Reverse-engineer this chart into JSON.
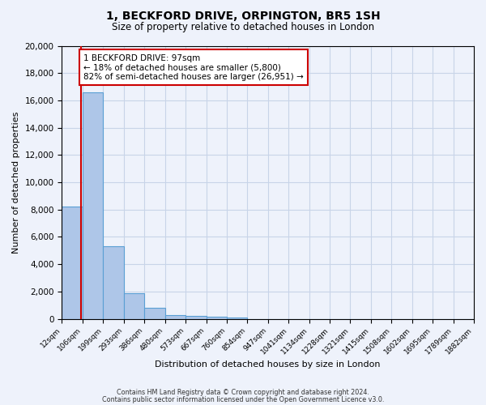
{
  "title_line1": "1, BECKFORD DRIVE, ORPINGTON, BR5 1SH",
  "title_line2": "Size of property relative to detached houses in London",
  "xlabel": "Distribution of detached houses by size in London",
  "ylabel": "Number of detached properties",
  "bar_values": [
    8200,
    16600,
    5300,
    1850,
    800,
    300,
    200,
    150,
    100,
    0,
    0,
    0,
    0,
    0,
    0,
    0,
    0,
    0,
    0,
    0
  ],
  "bin_labels": [
    "12sqm",
    "106sqm",
    "199sqm",
    "293sqm",
    "386sqm",
    "480sqm",
    "573sqm",
    "667sqm",
    "760sqm",
    "854sqm",
    "947sqm",
    "1041sqm",
    "1134sqm",
    "1228sqm",
    "1321sqm",
    "1415sqm",
    "1508sqm",
    "1602sqm",
    "1695sqm",
    "1789sqm",
    "1882sqm"
  ],
  "bin_edges": [
    12,
    106,
    199,
    293,
    386,
    480,
    573,
    667,
    760,
    854,
    947,
    1041,
    1134,
    1228,
    1321,
    1415,
    1508,
    1602,
    1695,
    1789,
    1882
  ],
  "bar_color": "#aec6e8",
  "bar_edge_color": "#5a9fd4",
  "red_line_x": 97,
  "annotation_title": "1 BECKFORD DRIVE: 97sqm",
  "annotation_line1": "← 18% of detached houses are smaller (5,800)",
  "annotation_line2": "82% of semi-detached houses are larger (26,951) →",
  "annotation_box_color": "#ffffff",
  "annotation_box_edge": "#cc0000",
  "red_line_color": "#cc0000",
  "ylim": [
    0,
    20000
  ],
  "yticks": [
    0,
    2000,
    4000,
    6000,
    8000,
    10000,
    12000,
    14000,
    16000,
    18000,
    20000
  ],
  "footer_line1": "Contains HM Land Registry data © Crown copyright and database right 2024.",
  "footer_line2": "Contains public sector information licensed under the Open Government Licence v3.0.",
  "background_color": "#eef2fb",
  "grid_color": "#c8d4e8"
}
